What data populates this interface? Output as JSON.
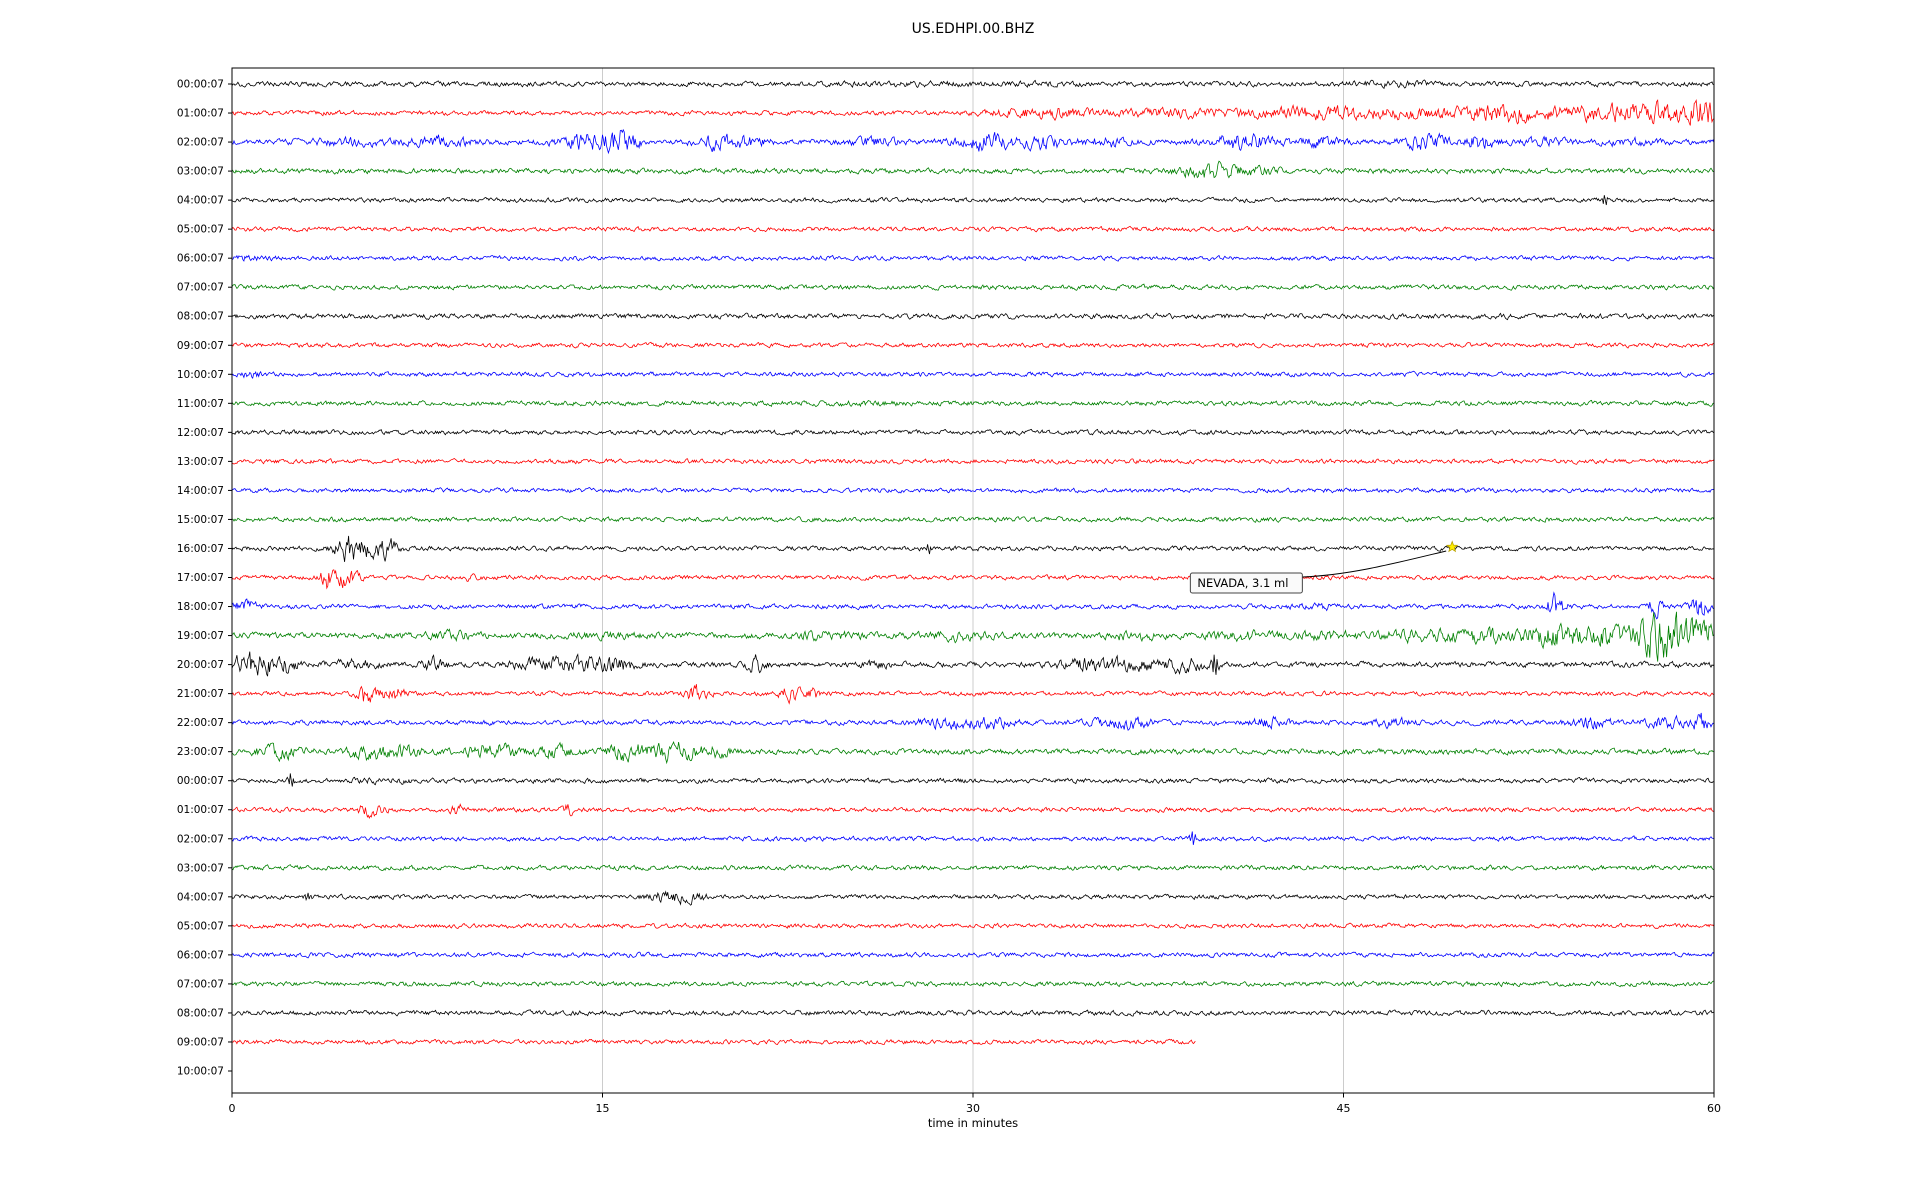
{
  "chart_data": {
    "type": "line",
    "title": "US.EDHPI.00.BHZ",
    "xlabel": "time in minutes",
    "xlim": [
      0,
      60
    ],
    "x_ticks": [
      0,
      15,
      30,
      45,
      60
    ],
    "grid_minutes": [
      15,
      30,
      45
    ],
    "legend": "none",
    "annotation": {
      "text": "NEVADA, 3.1 ml",
      "event_row": 16,
      "event_minute": 49.4,
      "box_minute": 38.8,
      "star_color": "#ffee00"
    },
    "colors": {
      "black_trace": "#000000",
      "red_trace": "#ff0000",
      "blue_trace": "#0000ff",
      "green_trace": "#008000",
      "grid": "#cccccc",
      "border": "#000000",
      "annotation_bg": "#fafafa",
      "annotation_border": "#444444"
    },
    "rows": [
      {
        "label": "00:00:07",
        "color": "#000000",
        "base": 2.0,
        "bursts": [
          [
            29,
            5,
            0.3
          ],
          [
            47,
            2,
            0.5
          ]
        ]
      },
      {
        "label": "01:00:07",
        "color": "#ff0000",
        "base": 1.9,
        "bursts": [
          [
            33,
            2,
            2.0
          ],
          [
            38,
            2,
            1.5
          ],
          [
            44,
            3,
            1.8
          ],
          [
            50,
            6,
            1.5
          ],
          [
            52,
            1.5,
            2.5
          ],
          [
            55.5,
            1.2,
            2.5
          ],
          [
            58,
            1.5,
            4.0
          ],
          [
            59.6,
            0.6,
            5.0
          ]
        ]
      },
      {
        "label": "02:00:07",
        "color": "#0000ff",
        "base": 2.3,
        "bursts": [
          [
            5,
            2,
            0.8
          ],
          [
            8.5,
            1,
            1.5
          ],
          [
            14.5,
            1.2,
            2.5
          ],
          [
            15.8,
            0.6,
            3.5
          ],
          [
            19.5,
            0.8,
            2.0
          ],
          [
            21,
            0.8,
            1.5
          ],
          [
            26,
            1,
            1.2
          ],
          [
            30.5,
            1.2,
            2.5
          ],
          [
            33,
            1,
            2.0
          ],
          [
            35.5,
            0.8,
            1.5
          ],
          [
            41,
            1.2,
            2.5
          ],
          [
            44,
            0.8,
            1.5
          ],
          [
            48.5,
            1.2,
            2.2
          ],
          [
            50.5,
            0.8,
            1.8
          ],
          [
            53,
            0.8,
            1.2
          ],
          [
            56.5,
            0.8,
            1.0
          ]
        ]
      },
      {
        "label": "03:00:07",
        "color": "#008000",
        "base": 2.1,
        "bursts": [
          [
            39.5,
            1.2,
            2.8
          ],
          [
            41.5,
            0.8,
            1.5
          ]
        ]
      },
      {
        "label": "04:00:07",
        "color": "#000000",
        "base": 1.8,
        "spikes": [
          [
            55.6,
            7
          ]
        ]
      },
      {
        "label": "05:00:07",
        "color": "#ff0000",
        "base": 1.8
      },
      {
        "label": "06:00:07",
        "color": "#0000ff",
        "base": 1.8,
        "bursts": [
          [
            0.7,
            0.7,
            0.8
          ]
        ]
      },
      {
        "label": "07:00:07",
        "color": "#008000",
        "base": 1.9
      },
      {
        "label": "08:00:07",
        "color": "#000000",
        "base": 2.1
      },
      {
        "label": "09:00:07",
        "color": "#ff0000",
        "base": 1.8
      },
      {
        "label": "10:00:07",
        "color": "#0000ff",
        "base": 1.8,
        "bursts": [
          [
            0.8,
            0.5,
            1.2
          ]
        ]
      },
      {
        "label": "11:00:07",
        "color": "#008000",
        "base": 1.9,
        "bursts": [
          [
            25,
            3,
            0.4
          ]
        ]
      },
      {
        "label": "12:00:07",
        "color": "#000000",
        "base": 1.9
      },
      {
        "label": "13:00:07",
        "color": "#ff0000",
        "base": 1.8
      },
      {
        "label": "14:00:07",
        "color": "#0000ff",
        "base": 1.8
      },
      {
        "label": "15:00:07",
        "color": "#008000",
        "base": 1.9
      },
      {
        "label": "16:00:07",
        "color": "#000000",
        "base": 1.9,
        "bursts": [
          [
            4.7,
            0.5,
            5.0
          ],
          [
            5.6,
            0.7,
            3.5
          ],
          [
            6.4,
            0.4,
            2.5
          ]
        ],
        "spikes": [
          [
            28.2,
            5
          ]
        ]
      },
      {
        "label": "17:00:07",
        "color": "#ff0000",
        "base": 1.8,
        "bursts": [
          [
            3.9,
            0.4,
            4.5
          ],
          [
            4.6,
            0.5,
            3.5
          ],
          [
            9.6,
            0.3,
            2.0
          ]
        ]
      },
      {
        "label": "18:00:07",
        "color": "#0000ff",
        "base": 1.9,
        "bursts": [
          [
            0.5,
            0.5,
            2.5
          ],
          [
            44,
            1,
            0.8
          ],
          [
            53.6,
            0.4,
            4.5
          ],
          [
            57.6,
            0.3,
            3.5
          ],
          [
            59.4,
            0.4,
            4.5
          ]
        ]
      },
      {
        "label": "19:00:07",
        "color": "#008000",
        "base": 2.5,
        "bursts": [
          [
            9,
            1,
            0.8
          ],
          [
            15,
            1.5,
            0.5
          ],
          [
            24,
            1.5,
            0.8
          ],
          [
            29.5,
            1,
            1.2
          ],
          [
            36.5,
            1,
            1.0
          ],
          [
            41,
            1.5,
            0.8
          ],
          [
            44.5,
            1.2,
            1.0
          ],
          [
            48,
            1.5,
            1.2
          ],
          [
            50.5,
            1.5,
            1.8
          ],
          [
            53.5,
            1.2,
            3.0
          ],
          [
            55.5,
            1.0,
            2.5
          ],
          [
            57.6,
            0.8,
            7.0
          ],
          [
            58.8,
            0.8,
            5.0
          ],
          [
            59.7,
            0.4,
            3.0
          ]
        ]
      },
      {
        "label": "20:00:07",
        "color": "#000000",
        "base": 2.3,
        "bursts": [
          [
            0.8,
            0.7,
            4.0
          ],
          [
            2.0,
            0.6,
            3.0
          ],
          [
            5,
            0.8,
            1.5
          ],
          [
            8.2,
            0.4,
            2.5
          ],
          [
            12.5,
            1,
            2.0
          ],
          [
            14.2,
            0.8,
            2.5
          ],
          [
            15.6,
            0.6,
            2.5
          ],
          [
            21.2,
            0.4,
            2.5
          ],
          [
            26,
            0.5,
            1.2
          ],
          [
            34.5,
            1,
            1.8
          ],
          [
            36.5,
            1,
            2.0
          ],
          [
            38.6,
            0.8,
            2.2
          ]
        ],
        "spikes": [
          [
            39.8,
            15
          ]
        ]
      },
      {
        "label": "21:00:07",
        "color": "#ff0000",
        "base": 1.8,
        "bursts": [
          [
            5.6,
            0.5,
            3.5
          ],
          [
            6.6,
            0.4,
            2.5
          ],
          [
            18.8,
            0.5,
            3.5
          ],
          [
            22.6,
            0.4,
            3.5
          ],
          [
            23.6,
            0.3,
            2.5
          ]
        ],
        "spikes": [
          [
            5.4,
            9
          ]
        ]
      },
      {
        "label": "22:00:07",
        "color": "#0000ff",
        "base": 2.0,
        "bursts": [
          [
            29,
            1.2,
            1.8
          ],
          [
            30.8,
            0.8,
            1.8
          ],
          [
            36,
            1.2,
            2.2
          ],
          [
            42,
            0.7,
            1.8
          ],
          [
            47,
            0.8,
            1.2
          ],
          [
            55,
            0.8,
            1.8
          ],
          [
            58,
            0.8,
            2.2
          ],
          [
            59.5,
            0.4,
            2.8
          ]
        ]
      },
      {
        "label": "23:00:07",
        "color": "#008000",
        "base": 2.3,
        "bursts": [
          [
            2,
            1.2,
            1.8
          ],
          [
            5.5,
            0.7,
            2.5
          ],
          [
            7,
            0.8,
            1.8
          ],
          [
            10.5,
            1.2,
            2.2
          ],
          [
            13,
            0.8,
            1.8
          ],
          [
            16,
            0.8,
            2.5
          ],
          [
            18,
            1,
            2.8
          ],
          [
            19.6,
            0.6,
            1.8
          ]
        ]
      },
      {
        "label": "00:00:07",
        "color": "#000000",
        "base": 1.9,
        "bursts": [
          [
            6,
            1.5,
            0.6
          ]
        ],
        "spikes": [
          [
            2.4,
            8
          ]
        ]
      },
      {
        "label": "01:00:07",
        "color": "#ff0000",
        "base": 1.8,
        "bursts": [
          [
            5.6,
            0.5,
            3.0
          ],
          [
            9.1,
            0.25,
            2.5
          ],
          [
            13.6,
            0.25,
            2.5
          ]
        ]
      },
      {
        "label": "02:00:07",
        "color": "#0000ff",
        "base": 1.8,
        "spikes": [
          [
            38.9,
            8
          ]
        ]
      },
      {
        "label": "03:00:07",
        "color": "#008000",
        "base": 1.9
      },
      {
        "label": "04:00:07",
        "color": "#000000",
        "base": 1.8,
        "bursts": [
          [
            17.6,
            0.7,
            2.8
          ],
          [
            18.7,
            0.5,
            1.8
          ]
        ],
        "spikes": [
          [
            3.1,
            5
          ]
        ]
      },
      {
        "label": "05:00:07",
        "color": "#ff0000",
        "base": 1.8
      },
      {
        "label": "06:00:07",
        "color": "#0000ff",
        "base": 1.9
      },
      {
        "label": "07:00:07",
        "color": "#008000",
        "base": 1.9
      },
      {
        "label": "08:00:07",
        "color": "#000000",
        "base": 2.0
      },
      {
        "label": "09:00:07",
        "color": "#ff0000",
        "base": 1.8,
        "end": 39
      },
      {
        "label": "10:00:07",
        "color": "#000000",
        "base": 0
      }
    ]
  }
}
